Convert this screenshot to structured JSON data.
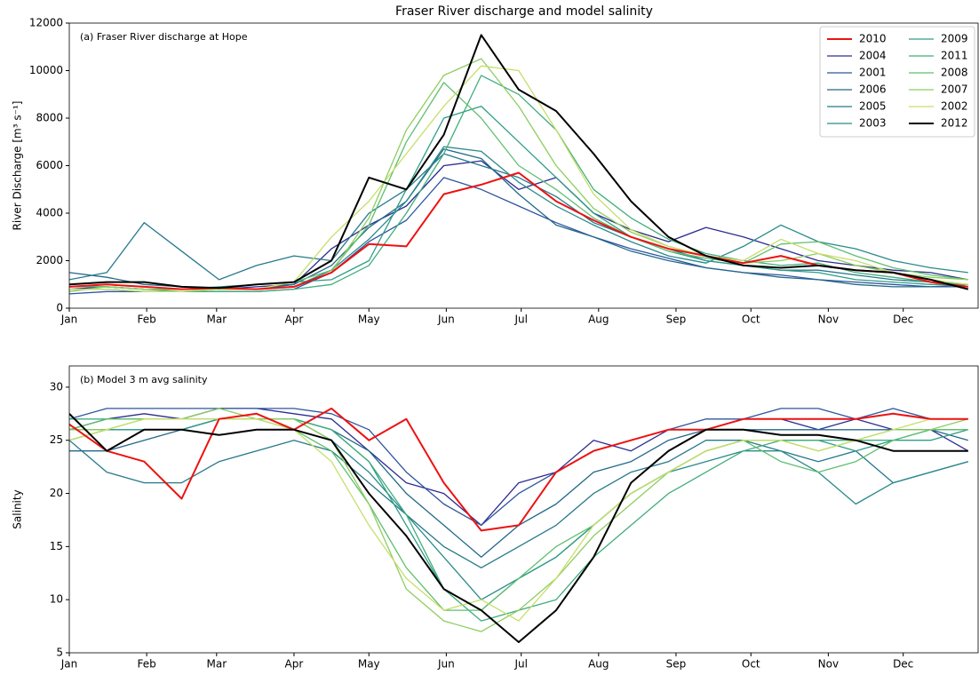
{
  "title": "Fraser River discharge and model salinity",
  "chart_data": [
    {
      "type": "line",
      "annotation": "(a) Fraser River discharge at Hope",
      "ylabel": "River Discharge [m³ s⁻¹]",
      "x": [
        1,
        16,
        31,
        46,
        61,
        76,
        91,
        106,
        121,
        136,
        151,
        166,
        181,
        196,
        211,
        226,
        241,
        256,
        271,
        286,
        301,
        316,
        331,
        346,
        361
      ],
      "xlim": [
        1,
        365
      ],
      "xticks": [
        {
          "value": 1,
          "label": "Jan"
        },
        {
          "value": 32,
          "label": "Feb"
        },
        {
          "value": 60,
          "label": "Mar"
        },
        {
          "value": 91,
          "label": "Apr"
        },
        {
          "value": 121,
          "label": "May"
        },
        {
          "value": 152,
          "label": "Jun"
        },
        {
          "value": 182,
          "label": "Jul"
        },
        {
          "value": 213,
          "label": "Aug"
        },
        {
          "value": 244,
          "label": "Sep"
        },
        {
          "value": 274,
          "label": "Oct"
        },
        {
          "value": 305,
          "label": "Nov"
        },
        {
          "value": 335,
          "label": "Dec"
        }
      ],
      "ylim": [
        0,
        12000
      ],
      "yticks": [
        0,
        2000,
        4000,
        6000,
        8000,
        10000,
        12000
      ],
      "legend": "upper right",
      "series": [
        {
          "name": "2010",
          "color": "#ee1111",
          "linewidth": 2,
          "values": [
            900,
            1000,
            900,
            800,
            850,
            800,
            900,
            1500,
            2700,
            2600,
            4800,
            5200,
            5700,
            4500,
            3700,
            3000,
            2500,
            2200,
            1900,
            2200,
            1800,
            1600,
            1500,
            1100,
            900
          ]
        },
        {
          "name": "2004",
          "color": "#2d2d90",
          "linewidth": 1.3,
          "values": [
            800,
            900,
            800,
            800,
            800,
            900,
            1000,
            2500,
            3500,
            4300,
            6000,
            6200,
            5000,
            5500,
            4000,
            3300,
            2800,
            3400,
            3000,
            2500,
            2000,
            1800,
            1600,
            1500,
            1200
          ]
        },
        {
          "name": "2001",
          "color": "#2e559e",
          "linewidth": 1.3,
          "values": [
            600,
            700,
            700,
            700,
            700,
            700,
            800,
            1500,
            2800,
            3700,
            5500,
            5000,
            4300,
            3600,
            3000,
            2500,
            2100,
            1700,
            1500,
            1400,
            1200,
            1100,
            1000,
            900,
            900
          ]
        },
        {
          "name": "2006",
          "color": "#23688a",
          "linewidth": 1.3,
          "values": [
            1500,
            1300,
            1000,
            900,
            800,
            800,
            1000,
            1800,
            3400,
            4500,
            6700,
            6300,
            4800,
            3500,
            3000,
            2400,
            2000,
            1700,
            1500,
            1300,
            1200,
            1000,
            900,
            900,
            1000
          ]
        },
        {
          "name": "2005",
          "color": "#26798c",
          "linewidth": 1.3,
          "values": [
            1200,
            1500,
            3600,
            2400,
            1200,
            1800,
            2200,
            2000,
            4000,
            5000,
            6500,
            6000,
            5500,
            4700,
            3600,
            3000,
            2500,
            2000,
            1800,
            1600,
            1600,
            1400,
            1200,
            1100,
            1000
          ]
        },
        {
          "name": "2003",
          "color": "#2a8a8b",
          "linewidth": 1.3,
          "values": [
            800,
            800,
            700,
            700,
            800,
            800,
            900,
            1600,
            2900,
            4500,
            6800,
            6600,
            5300,
            4300,
            3500,
            2800,
            2200,
            1900,
            2600,
            3500,
            2800,
            2500,
            2000,
            1700,
            1500
          ]
        },
        {
          "name": "2009",
          "color": "#2e9d86",
          "linewidth": 1.3,
          "values": [
            900,
            900,
            800,
            800,
            900,
            1000,
            1100,
            1200,
            2000,
            5000,
            8000,
            8500,
            7000,
            5500,
            4000,
            3000,
            2400,
            2000,
            1800,
            1600,
            1500,
            1200,
            1100,
            1000,
            1000
          ]
        },
        {
          "name": "2011",
          "color": "#41ad7c",
          "linewidth": 1.3,
          "values": [
            900,
            900,
            800,
            700,
            700,
            700,
            800,
            1000,
            1800,
            4000,
            6500,
            9800,
            9000,
            7500,
            5000,
            3800,
            2900,
            2300,
            2000,
            1800,
            1900,
            1500,
            1300,
            1100,
            1000
          ]
        },
        {
          "name": "2008",
          "color": "#5fbf6f",
          "linewidth": 1.3,
          "values": [
            900,
            900,
            800,
            800,
            800,
            800,
            1100,
            1600,
            3500,
            7000,
            9500,
            8000,
            6000,
            5000,
            3800,
            3000,
            2400,
            2100,
            1900,
            2700,
            2800,
            2200,
            1700,
            1400,
            1200
          ]
        },
        {
          "name": "2007",
          "color": "#8ecd60",
          "linewidth": 1.3,
          "values": [
            700,
            900,
            800,
            800,
            800,
            800,
            900,
            1500,
            3800,
            7500,
            9800,
            10500,
            8500,
            6000,
            4200,
            3200,
            2600,
            2200,
            1900,
            2000,
            2300,
            1800,
            1500,
            1300,
            1200
          ]
        },
        {
          "name": "2002",
          "color": "#c6df6a",
          "linewidth": 1.3,
          "values": [
            800,
            800,
            700,
            700,
            800,
            800,
            1100,
            3000,
            4500,
            6500,
            8500,
            10200,
            10000,
            7500,
            4800,
            3300,
            2600,
            2200,
            2000,
            2900,
            2300,
            2000,
            1500,
            1200,
            1000
          ]
        },
        {
          "name": "2012",
          "color": "#000000",
          "linewidth": 2,
          "values": [
            1000,
            1100,
            1100,
            900,
            850,
            1000,
            1100,
            2000,
            5500,
            5000,
            7300,
            11500,
            9200,
            8300,
            6500,
            4500,
            3000,
            2200,
            1800,
            1700,
            1800,
            1600,
            1500,
            1200,
            800
          ]
        }
      ]
    },
    {
      "type": "line",
      "annotation": "(b) Model 3 m avg salinity",
      "ylabel": "Salinity",
      "x": [
        1,
        16,
        31,
        46,
        61,
        76,
        91,
        106,
        121,
        136,
        151,
        166,
        181,
        196,
        211,
        226,
        241,
        256,
        271,
        286,
        301,
        316,
        331,
        346,
        361
      ],
      "xlim": [
        1,
        365
      ],
      "xticks": [
        {
          "value": 1,
          "label": "Jan"
        },
        {
          "value": 32,
          "label": "Feb"
        },
        {
          "value": 60,
          "label": "Mar"
        },
        {
          "value": 91,
          "label": "Apr"
        },
        {
          "value": 121,
          "label": "May"
        },
        {
          "value": 152,
          "label": "Jun"
        },
        {
          "value": 182,
          "label": "Jul"
        },
        {
          "value": 213,
          "label": "Aug"
        },
        {
          "value": 244,
          "label": "Sep"
        },
        {
          "value": 274,
          "label": "Oct"
        },
        {
          "value": 305,
          "label": "Nov"
        },
        {
          "value": 335,
          "label": "Dec"
        }
      ],
      "ylim": [
        5,
        32
      ],
      "yticks": [
        5,
        10,
        15,
        20,
        25,
        30
      ],
      "series": [
        {
          "color": "#ee1111",
          "linewidth": 2,
          "values": [
            26.5,
            24,
            23,
            19.5,
            27,
            27.5,
            26,
            28,
            25,
            27,
            21,
            16.5,
            17,
            22,
            24,
            25,
            26,
            26,
            27,
            27,
            27,
            27,
            27.5,
            27,
            27
          ]
        },
        {
          "color": "#2d2d90",
          "linewidth": 1.3,
          "values": [
            26,
            27,
            27.5,
            27,
            28,
            28,
            27.5,
            27,
            24,
            21,
            20,
            17,
            21,
            22,
            25,
            24,
            26,
            26,
            27,
            27,
            26,
            27,
            26,
            26,
            24
          ]
        },
        {
          "color": "#2e559e",
          "linewidth": 1.3,
          "values": [
            27,
            28,
            28,
            28,
            28,
            28,
            28,
            27.5,
            26,
            22,
            19,
            17,
            20,
            22,
            24,
            25,
            26,
            27,
            27,
            28,
            28,
            27,
            28,
            27,
            27
          ]
        },
        {
          "color": "#23688a",
          "linewidth": 1.3,
          "values": [
            24,
            24,
            25,
            26,
            27,
            27,
            27,
            26,
            24,
            20,
            17,
            14,
            17,
            19,
            22,
            23,
            25,
            26,
            26,
            26,
            26,
            26,
            26,
            26,
            25
          ]
        },
        {
          "color": "#26798c",
          "linewidth": 1.3,
          "values": [
            25,
            22,
            21,
            21,
            23,
            24,
            25,
            24,
            21,
            18,
            15,
            13,
            15,
            17,
            20,
            22,
            23,
            25,
            25,
            24,
            23,
            24,
            21,
            22,
            23
          ]
        },
        {
          "color": "#2a8a8b",
          "linewidth": 1.3,
          "values": [
            25,
            26,
            26,
            26,
            27,
            27,
            27,
            25,
            22,
            18,
            14,
            10,
            12,
            14,
            17,
            20,
            22,
            23,
            24,
            24,
            22,
            19,
            21,
            22,
            23
          ]
        },
        {
          "color": "#2e9d86",
          "linewidth": 1.3,
          "values": [
            26,
            26,
            26,
            26,
            27,
            27,
            27,
            26,
            23,
            17,
            11,
            9,
            12,
            14,
            17,
            20,
            22,
            24,
            25,
            25,
            25,
            24,
            25,
            25,
            26
          ]
        },
        {
          "color": "#41ad7c",
          "linewidth": 1.3,
          "values": [
            27,
            27,
            27,
            27,
            27,
            27,
            27,
            26,
            23,
            18,
            11,
            8,
            9,
            10,
            14,
            17,
            20,
            22,
            24,
            25,
            25,
            25,
            25,
            26,
            26
          ]
        },
        {
          "color": "#5fbf6f",
          "linewidth": 1.3,
          "values": [
            26,
            27,
            27,
            27,
            27,
            27,
            26,
            24,
            19,
            13,
            9,
            9,
            12,
            15,
            17,
            20,
            22,
            24,
            25,
            23,
            22,
            23,
            25,
            26,
            26
          ]
        },
        {
          "color": "#8ecd60",
          "linewidth": 1.3,
          "values": [
            26,
            26,
            27,
            27,
            28,
            27,
            27,
            25,
            19,
            11,
            8,
            7,
            9,
            12,
            16,
            19,
            22,
            24,
            25,
            25,
            24,
            25,
            26,
            26,
            27
          ]
        },
        {
          "color": "#c6df6a",
          "linewidth": 1.3,
          "values": [
            25,
            26,
            27,
            27,
            27,
            27,
            26,
            23,
            17,
            12,
            9,
            10,
            8,
            12,
            17,
            20,
            22,
            24,
            25,
            25,
            24,
            25,
            26,
            27,
            27
          ]
        },
        {
          "color": "#000000",
          "linewidth": 2,
          "values": [
            27.5,
            24,
            26,
            26,
            25.5,
            26,
            26,
            25,
            20,
            16,
            11,
            9,
            6,
            9,
            14,
            21,
            24,
            26,
            26,
            25.5,
            25.5,
            25,
            24,
            24,
            24
          ]
        }
      ]
    }
  ]
}
